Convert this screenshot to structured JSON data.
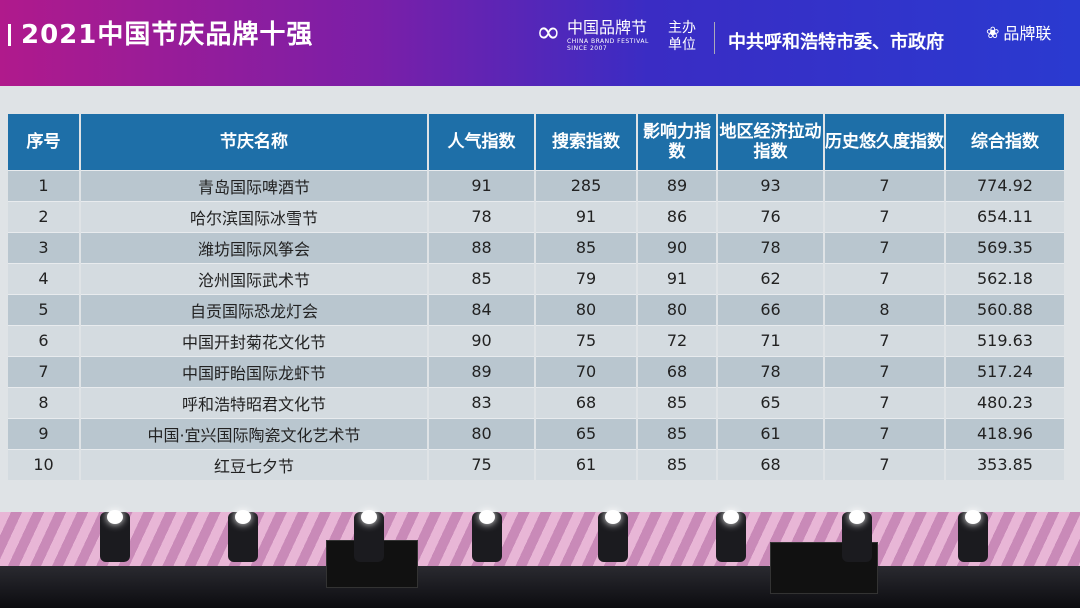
{
  "banner": {
    "title": "2021中国节庆品牌十强",
    "logo_cn": "中国品牌节",
    "logo_en": "CHINA BRAND FESTIVAL",
    "logo_since": "SINCE 2007",
    "host_label": "主办单位",
    "organizer": "中共呼和浩特市委、市政府",
    "brand": "品牌联"
  },
  "table": {
    "headers": [
      "序号",
      "节庆名称",
      "人气指数",
      "搜索指数",
      "影响力指数",
      "地区经济拉动指数",
      "历史悠久度指数",
      "综合指数"
    ],
    "header_color": "#1e6fa8",
    "rows": [
      [
        "1",
        "青岛国际啤酒节",
        "91",
        "285",
        "89",
        "93",
        "7",
        "774.92"
      ],
      [
        "2",
        "哈尔滨国际冰雪节",
        "78",
        "91",
        "86",
        "76",
        "7",
        "654.11"
      ],
      [
        "3",
        "潍坊国际风筝会",
        "88",
        "85",
        "90",
        "78",
        "7",
        "569.35"
      ],
      [
        "4",
        "沧州国际武术节",
        "85",
        "79",
        "91",
        "62",
        "7",
        "562.18"
      ],
      [
        "5",
        "自贡国际恐龙灯会",
        "84",
        "80",
        "80",
        "66",
        "8",
        "560.88"
      ],
      [
        "6",
        "中国开封菊花文化节",
        "90",
        "75",
        "72",
        "71",
        "7",
        "519.63"
      ],
      [
        "7",
        "中国盱眙国际龙虾节",
        "89",
        "70",
        "68",
        "78",
        "7",
        "517.24"
      ],
      [
        "8",
        "呼和浩特昭君文化节",
        "83",
        "68",
        "85",
        "65",
        "7",
        "480.23"
      ],
      [
        "9",
        "中国·宜兴国际陶瓷文化艺术节",
        "80",
        "65",
        "85",
        "61",
        "7",
        "418.96"
      ],
      [
        "10",
        "红豆七夕节",
        "75",
        "61",
        "85",
        "68",
        "7",
        "353.85"
      ]
    ]
  }
}
